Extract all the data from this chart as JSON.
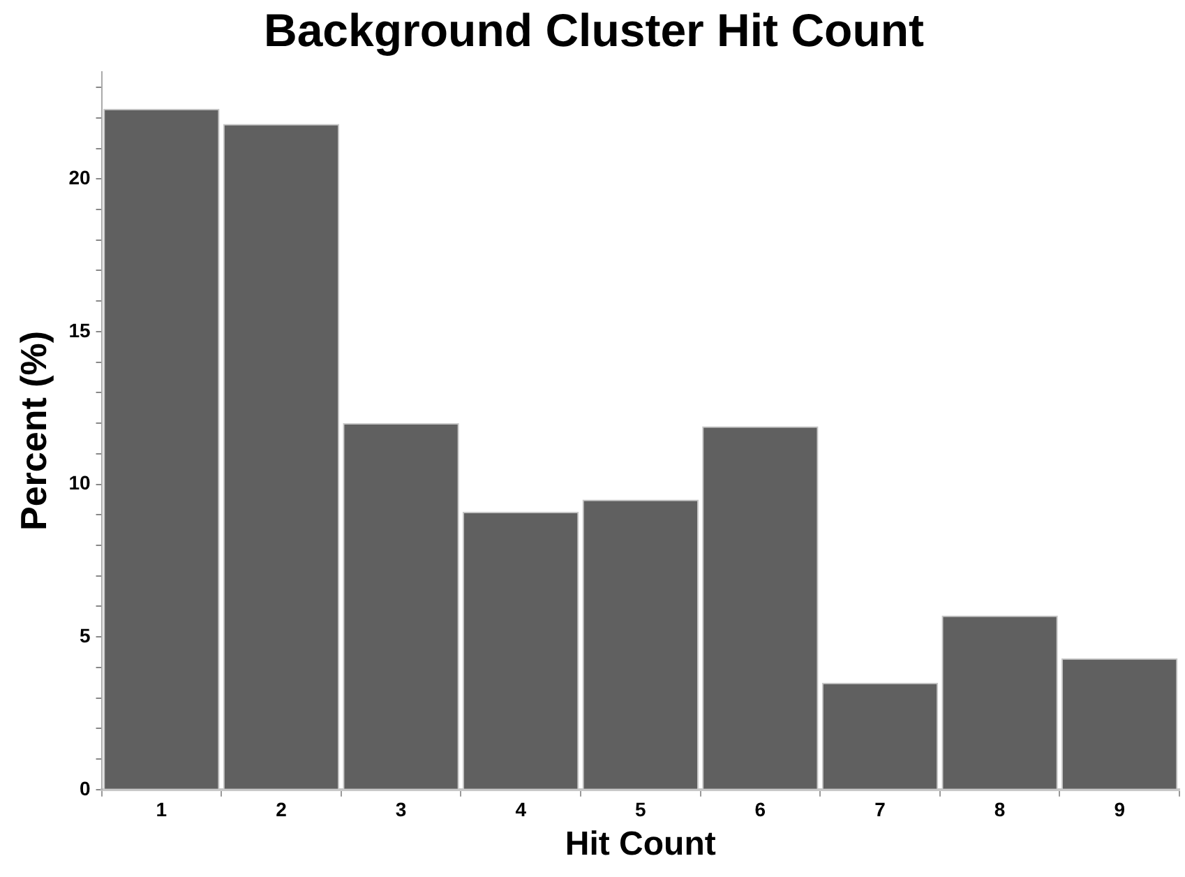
{
  "chart_data": {
    "type": "bar",
    "title": "Background Cluster Hit Count",
    "xlabel": "Hit Count",
    "ylabel": "Percent (%)",
    "categories": [
      "1",
      "2",
      "3",
      "4",
      "5",
      "6",
      "7",
      "8",
      "9"
    ],
    "values": [
      22.3,
      21.8,
      12.0,
      9.1,
      9.5,
      11.9,
      3.5,
      5.7,
      4.3
    ],
    "color": "#606060",
    "ylim": [
      0,
      23.5
    ],
    "yticks": [
      0,
      {
        "value": 1,
        "label": null
      },
      {
        "value": 2,
        "label": null
      },
      {
        "value": 3,
        "label": null
      },
      {
        "value": 4,
        "label": null
      },
      5,
      {
        "value": 6,
        "label": null
      },
      {
        "value": 7,
        "label": null
      },
      {
        "value": 8,
        "label": null
      },
      {
        "value": 9,
        "label": null
      },
      10,
      {
        "value": 11,
        "label": null
      },
      {
        "value": 12,
        "label": null
      },
      {
        "value": 13,
        "label": null
      },
      {
        "value": 14,
        "label": null
      },
      15,
      {
        "value": 16,
        "label": null
      },
      {
        "value": 17,
        "label": null
      },
      {
        "value": 18,
        "label": null
      },
      {
        "value": 19,
        "label": null
      },
      20,
      {
        "value": 21,
        "label": null
      },
      {
        "value": 22,
        "label": null
      },
      {
        "value": 23,
        "label": null
      }
    ],
    "grid": false,
    "legend": false
  }
}
